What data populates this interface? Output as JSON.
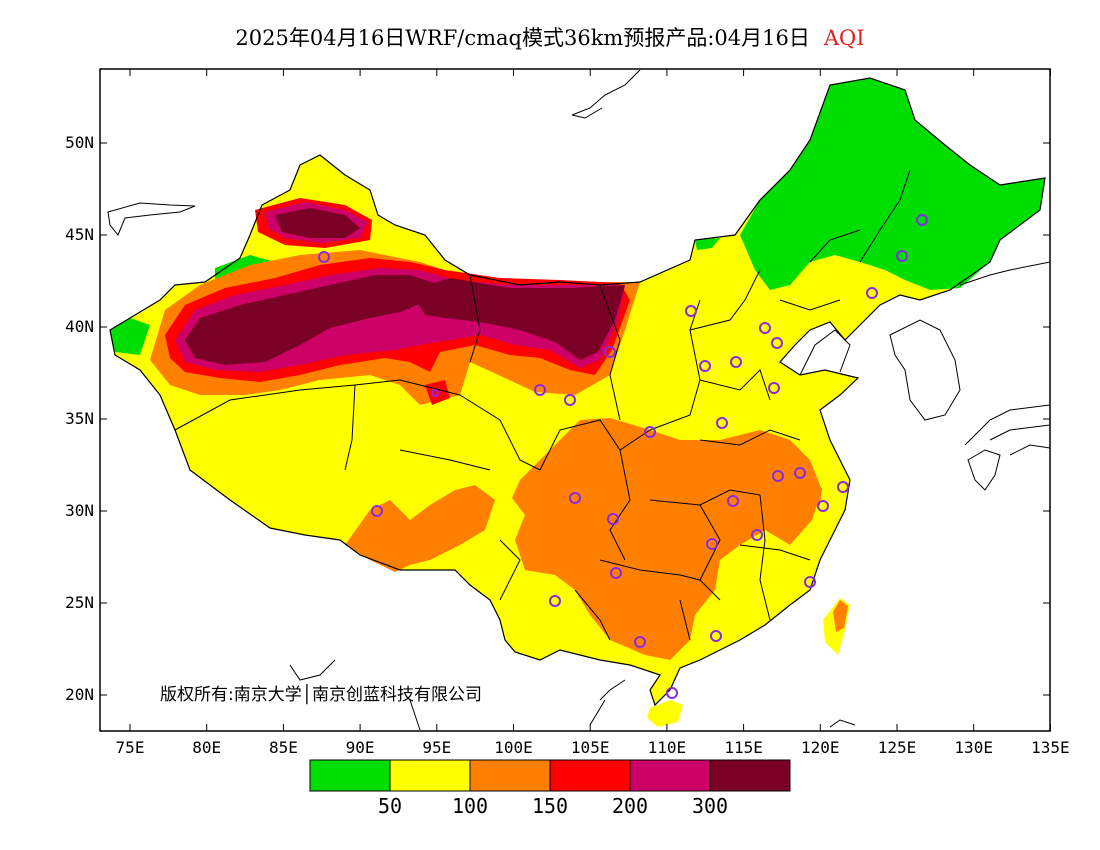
{
  "title": {
    "main": "2025年04月16日WRF/cmaq模式36km预报产品:04月16日",
    "variable": "AQI",
    "variable_color": "#e02020"
  },
  "copyright": "版权所有:南京大学│南京创蓝科技有限公司",
  "lat_ticks": [
    "50N",
    "45N",
    "40N",
    "35N",
    "30N",
    "25N",
    "20N"
  ],
  "lon_ticks": [
    "75E",
    "80E",
    "85E",
    "90E",
    "95E",
    "100E",
    "105E",
    "110E",
    "115E",
    "120E",
    "125E",
    "130E",
    "135E"
  ],
  "legend": {
    "colors": [
      "#00dd00",
      "#ffff00",
      "#ff8000",
      "#ff0000",
      "#cc0066",
      "#7a0025"
    ],
    "labels": [
      "50",
      "100",
      "150",
      "200",
      "300"
    ]
  },
  "palette": {
    "good": "#00dd00",
    "moderate": "#ffff00",
    "sensitive": "#ff8000",
    "unhealthy": "#ff0000",
    "very_unhealthy": "#cc0066",
    "hazardous": "#7a0025",
    "station": "#8a2be2"
  }
}
